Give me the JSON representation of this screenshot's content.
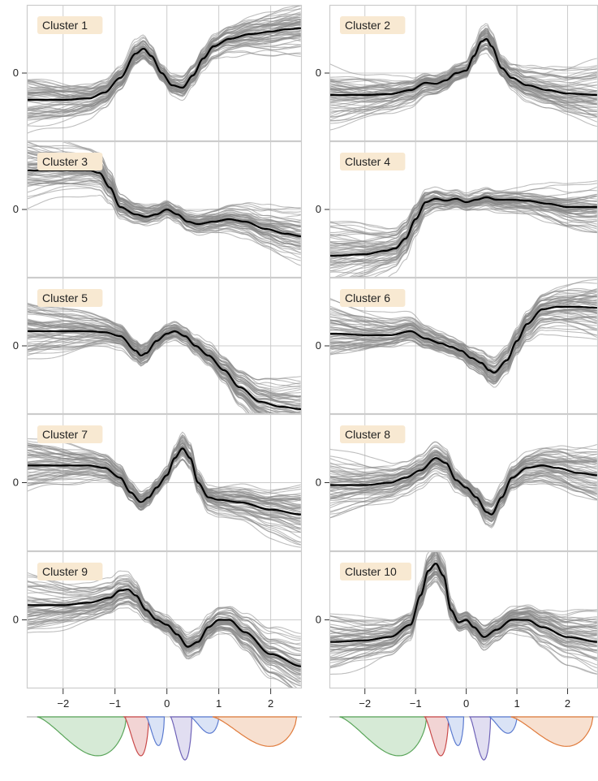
{
  "colors": {
    "background": "#ffffff",
    "grid": "#cccccc",
    "frame": "#cccccc",
    "individual_curve": "#888888",
    "mean_curve": "#000000",
    "label_box": "#f8e9d2",
    "axis_text": "#222222"
  },
  "chart_data": {
    "type": "line",
    "layout": "5 rows x 2 columns of panels, shared x axis per column, mini density strip below each column",
    "x_ticks": [
      -2,
      -1,
      0,
      1,
      2
    ],
    "x_tick_labels": [
      "−2",
      "−1",
      "0",
      "1",
      "2"
    ],
    "xlim": [
      -2.7,
      2.6
    ],
    "y_ticks": [
      0
    ],
    "y_tick_labels": [
      "0"
    ],
    "ylim": [
      -1.4,
      1.4
    ],
    "grid": true,
    "individual_curves_per_panel": 60,
    "panels": [
      {
        "label": "Cluster 1",
        "mean_x": [
          -2.6,
          -2.0,
          -1.5,
          -1.2,
          -0.9,
          -0.6,
          -0.45,
          -0.3,
          -0.1,
          0.1,
          0.3,
          0.5,
          0.7,
          0.9,
          1.2,
          1.6,
          2.0,
          2.3,
          2.6
        ],
        "mean_y": [
          -0.55,
          -0.55,
          -0.52,
          -0.4,
          -0.1,
          0.4,
          0.5,
          0.35,
          0.0,
          -0.25,
          -0.3,
          -0.05,
          0.3,
          0.55,
          0.7,
          0.8,
          0.85,
          0.9,
          0.92
        ],
        "spread": 0.35
      },
      {
        "label": "Cluster 2",
        "mean_x": [
          -2.6,
          -2.0,
          -1.5,
          -1.1,
          -0.8,
          -0.6,
          -0.4,
          -0.2,
          0.0,
          0.15,
          0.3,
          0.4,
          0.5,
          0.7,
          0.9,
          1.2,
          1.6,
          2.0,
          2.6
        ],
        "mean_y": [
          -0.45,
          -0.45,
          -0.43,
          -0.35,
          -0.2,
          -0.22,
          -0.15,
          0.0,
          0.05,
          0.35,
          0.65,
          0.7,
          0.55,
          0.1,
          -0.1,
          -0.25,
          -0.35,
          -0.42,
          -0.45
        ],
        "spread": 0.35
      },
      {
        "label": "Cluster 3",
        "mean_x": [
          -2.6,
          -2.0,
          -1.5,
          -1.3,
          -1.1,
          -0.9,
          -0.6,
          -0.4,
          -0.2,
          0.0,
          0.2,
          0.4,
          0.6,
          0.9,
          1.2,
          1.5,
          1.9,
          2.3,
          2.6
        ],
        "mean_y": [
          0.8,
          0.8,
          0.8,
          0.75,
          0.45,
          0.05,
          -0.1,
          -0.15,
          -0.1,
          0.0,
          -0.1,
          -0.25,
          -0.3,
          -0.25,
          -0.2,
          -0.25,
          -0.4,
          -0.5,
          -0.55
        ],
        "spread": 0.35
      },
      {
        "label": "Cluster 4",
        "mean_x": [
          -2.6,
          -2.0,
          -1.6,
          -1.4,
          -1.2,
          -1.0,
          -0.8,
          -0.6,
          -0.4,
          -0.2,
          0.0,
          0.2,
          0.4,
          0.6,
          0.9,
          1.2,
          1.6,
          2.0,
          2.6
        ],
        "mean_y": [
          -0.95,
          -0.92,
          -0.85,
          -0.8,
          -0.6,
          -0.2,
          0.15,
          0.22,
          0.18,
          0.22,
          0.15,
          0.2,
          0.25,
          0.2,
          0.2,
          0.18,
          0.12,
          0.05,
          0.05
        ],
        "spread": 0.35
      },
      {
        "label": "Cluster 5",
        "mean_x": [
          -2.6,
          -2.0,
          -1.5,
          -1.2,
          -0.9,
          -0.6,
          -0.5,
          -0.4,
          -0.2,
          0.0,
          0.15,
          0.35,
          0.55,
          0.8,
          1.1,
          1.4,
          1.8,
          2.2,
          2.6
        ],
        "mean_y": [
          0.3,
          0.3,
          0.3,
          0.28,
          0.2,
          -0.1,
          -0.2,
          -0.15,
          0.1,
          0.25,
          0.3,
          0.2,
          0.0,
          -0.2,
          -0.5,
          -0.85,
          -1.15,
          -1.25,
          -1.3
        ],
        "spread": 0.35
      },
      {
        "label": "Cluster 6",
        "mean_x": [
          -2.6,
          -2.0,
          -1.5,
          -1.1,
          -0.8,
          -0.5,
          -0.3,
          -0.1,
          0.1,
          0.3,
          0.45,
          0.55,
          0.8,
          1.0,
          1.2,
          1.5,
          1.8,
          2.2,
          2.6
        ],
        "mean_y": [
          0.25,
          0.22,
          0.22,
          0.3,
          0.15,
          0.05,
          -0.02,
          -0.1,
          -0.25,
          -0.35,
          -0.5,
          -0.55,
          -0.3,
          0.1,
          0.45,
          0.75,
          0.8,
          0.8,
          0.78
        ],
        "spread": 0.4
      },
      {
        "label": "Cluster 7",
        "mean_x": [
          -2.6,
          -2.0,
          -1.5,
          -1.2,
          -0.9,
          -0.7,
          -0.5,
          -0.35,
          -0.2,
          0.0,
          0.15,
          0.3,
          0.45,
          0.6,
          0.8,
          1.0,
          1.4,
          2.0,
          2.6
        ],
        "mean_y": [
          0.35,
          0.35,
          0.35,
          0.3,
          0.1,
          -0.2,
          -0.4,
          -0.3,
          -0.1,
          0.15,
          0.5,
          0.7,
          0.5,
          0.0,
          -0.3,
          -0.35,
          -0.4,
          -0.55,
          -0.65
        ],
        "spread": 0.35
      },
      {
        "label": "Cluster 8",
        "mean_x": [
          -2.6,
          -2.0,
          -1.5,
          -1.2,
          -0.9,
          -0.6,
          -0.4,
          -0.2,
          0.0,
          0.2,
          0.4,
          0.5,
          0.7,
          0.9,
          1.2,
          1.5,
          1.8,
          2.2,
          2.6
        ],
        "mean_y": [
          -0.05,
          -0.05,
          0.0,
          0.1,
          0.25,
          0.5,
          0.4,
          0.05,
          -0.1,
          -0.3,
          -0.6,
          -0.65,
          -0.3,
          0.1,
          0.3,
          0.35,
          0.3,
          0.2,
          0.15
        ],
        "spread": 0.45
      },
      {
        "label": "Cluster 9",
        "mean_x": [
          -2.6,
          -2.0,
          -1.5,
          -1.1,
          -0.9,
          -0.75,
          -0.6,
          -0.4,
          -0.2,
          0.0,
          0.2,
          0.4,
          0.6,
          0.8,
          1.0,
          1.2,
          1.5,
          2.0,
          2.6
        ],
        "mean_y": [
          0.3,
          0.3,
          0.35,
          0.45,
          0.6,
          0.62,
          0.5,
          0.2,
          0.0,
          -0.1,
          -0.3,
          -0.55,
          -0.45,
          -0.15,
          0.0,
          0.0,
          -0.25,
          -0.7,
          -0.95
        ],
        "spread": 0.35
      },
      {
        "label": "Cluster 10",
        "mean_x": [
          -2.6,
          -2.0,
          -1.5,
          -1.1,
          -0.9,
          -0.75,
          -0.6,
          -0.45,
          -0.3,
          -0.15,
          0.0,
          0.15,
          0.35,
          0.6,
          0.9,
          1.2,
          1.5,
          2.0,
          2.6
        ],
        "mean_y": [
          -0.45,
          -0.42,
          -0.35,
          -0.1,
          0.5,
          1.0,
          1.15,
          0.9,
          0.2,
          -0.05,
          0.0,
          -0.15,
          -0.35,
          -0.2,
          0.0,
          0.0,
          -0.15,
          -0.35,
          -0.45
        ],
        "spread": 0.35
      }
    ],
    "density_strip": {
      "components": [
        {
          "color": "#5aa55a",
          "fill": "#cfe6cf",
          "x_range": [
            -2.5,
            -0.78
          ],
          "depth": 0.95
        },
        {
          "color": "#c94a4a",
          "fill": "#f0cccc",
          "x_range": [
            -0.82,
            -0.35
          ],
          "depth": 0.95
        },
        {
          "color": "#5b7bd0",
          "fill": "#d4def4",
          "x_range": [
            -0.4,
            -0.05
          ],
          "depth": 0.7
        },
        {
          "color": "#6f63b8",
          "fill": "#dcd8ef",
          "x_range": [
            0.07,
            0.48
          ],
          "depth": 1.05
        },
        {
          "color": "#5b7bd0",
          "fill": "#d4def4",
          "x_range": [
            0.45,
            1.0
          ],
          "depth": 0.4
        },
        {
          "color": "#e07b3c",
          "fill": "#f6dac8",
          "x_range": [
            0.88,
            2.5
          ],
          "depth": 0.72
        }
      ]
    }
  }
}
